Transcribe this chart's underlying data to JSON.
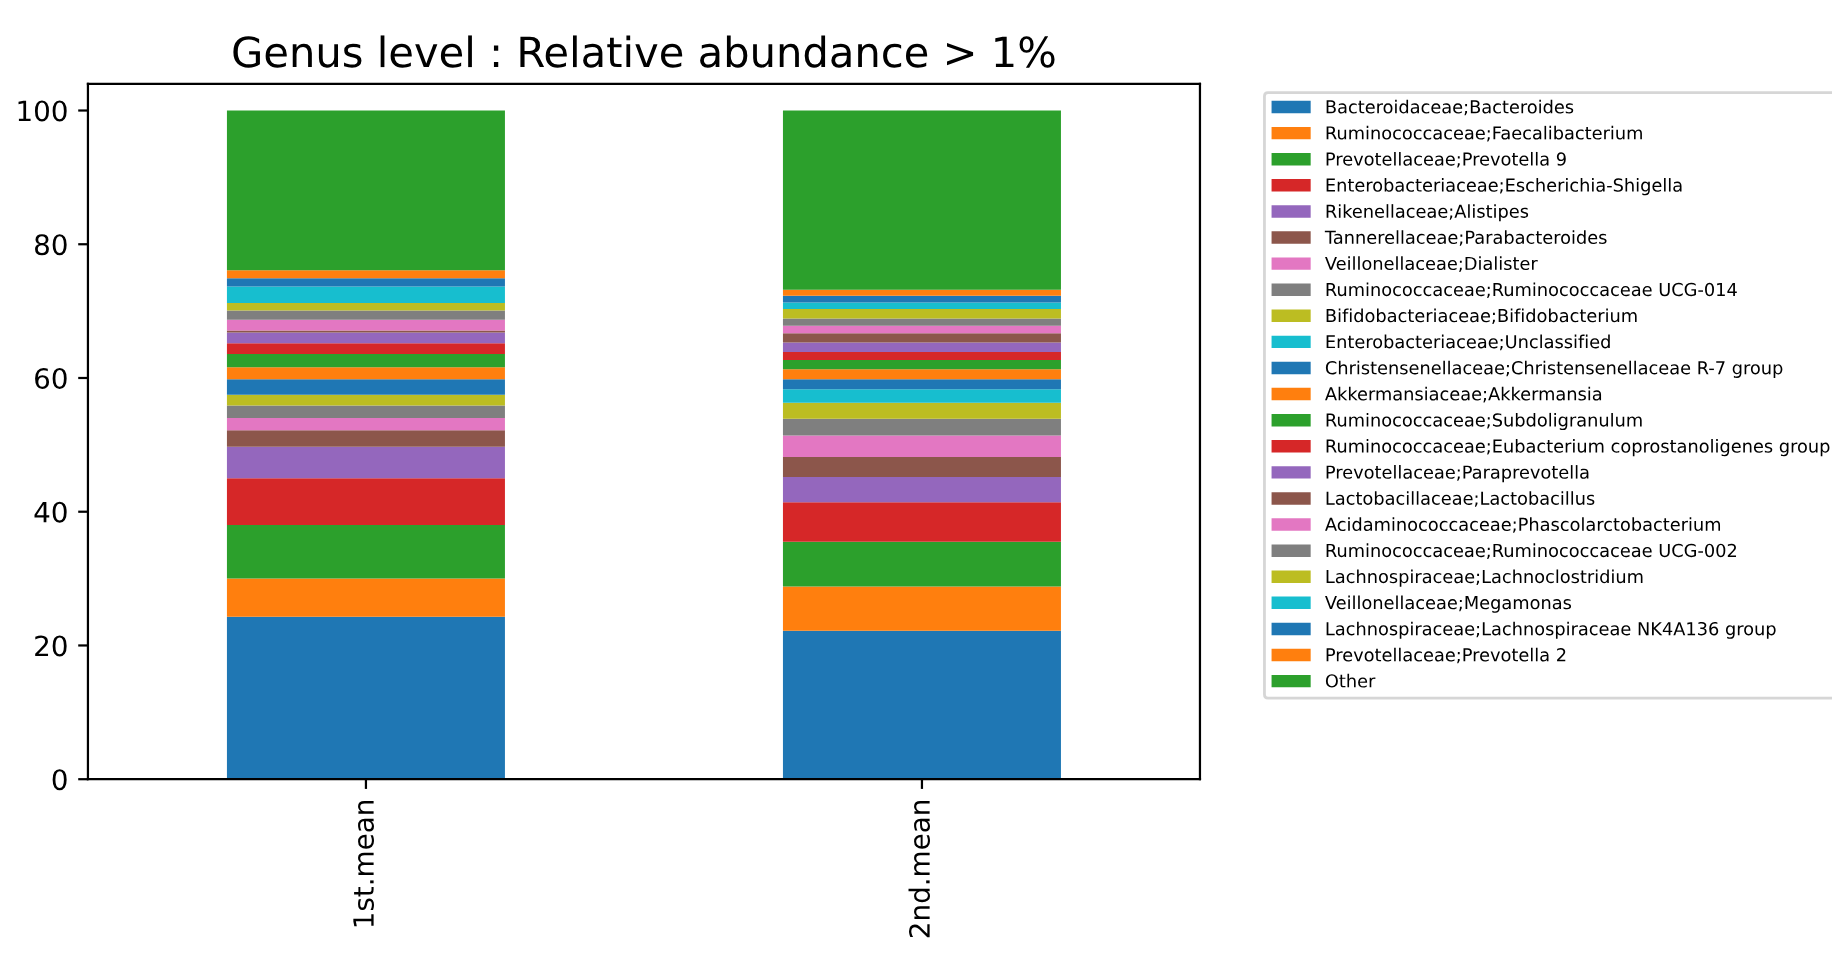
{
  "chart_data": {
    "type": "bar",
    "title": "Genus level : Relative abundance > 1%",
    "stacked": true,
    "legend": "right",
    "grid": false,
    "categories": [
      "1st.mean",
      "2nd.mean"
    ],
    "ylim": [
      0,
      104
    ],
    "yticks": [
      0,
      20,
      40,
      60,
      80,
      100
    ],
    "series": [
      {
        "name": "Bacteroidaceae;Bacteroides",
        "color": "#1f77b4",
        "values": [
          24.3,
          22.2
        ]
      },
      {
        "name": "Ruminococcaceae;Faecalibacterium",
        "color": "#ff7f0e",
        "values": [
          5.7,
          6.6
        ]
      },
      {
        "name": "Prevotellaceae;Prevotella 9",
        "color": "#2ca02c",
        "values": [
          8.0,
          6.7
        ]
      },
      {
        "name": "Enterobacteriaceae;Escherichia-Shigella",
        "color": "#d62728",
        "values": [
          7.0,
          5.9
        ]
      },
      {
        "name": "Rikenellaceae;Alistipes",
        "color": "#9467bd",
        "values": [
          4.7,
          3.8
        ]
      },
      {
        "name": "Tannerellaceae;Parabacteroides",
        "color": "#8c564b",
        "values": [
          2.5,
          3.0
        ]
      },
      {
        "name": "Veillonellaceae;Dialister",
        "color": "#e377c2",
        "values": [
          1.8,
          3.2
        ]
      },
      {
        "name": "Ruminococcaceae;Ruminococcaceae UCG-014",
        "color": "#7f7f7f",
        "values": [
          1.9,
          2.5
        ]
      },
      {
        "name": "Bifidobacteriaceae;Bifidobacterium",
        "color": "#bcbd22",
        "values": [
          1.6,
          2.4
        ]
      },
      {
        "name": "Enterobacteriaceae;Unclassified",
        "color": "#17becf",
        "values": [
          0,
          2.0
        ]
      },
      {
        "name": "Christensenellaceae;Christensenellaceae R-7 group",
        "color": "#1f77b4",
        "values": [
          2.3,
          1.5
        ]
      },
      {
        "name": "Akkermansiaceae;Akkermansia",
        "color": "#ff7f0e",
        "values": [
          1.8,
          1.5
        ]
      },
      {
        "name": "Ruminococcaceae;Subdoligranulum",
        "color": "#2ca02c",
        "values": [
          2.0,
          1.4
        ]
      },
      {
        "name": "Ruminococcaceae;Eubacterium coprostanoligenes group",
        "color": "#d62728",
        "values": [
          1.6,
          1.2
        ]
      },
      {
        "name": "Prevotellaceae;Paraprevotella",
        "color": "#9467bd",
        "values": [
          1.6,
          1.4
        ]
      },
      {
        "name": "Lactobacillaceae;Lactobacillus",
        "color": "#8c564b",
        "values": [
          0.3,
          1.4
        ]
      },
      {
        "name": "Acidaminococcaceae;Phascolarctobacterium",
        "color": "#e377c2",
        "values": [
          1.6,
          1.1
        ]
      },
      {
        "name": "Ruminococcaceae;Ruminococcaceae UCG-002",
        "color": "#7f7f7f",
        "values": [
          1.4,
          1.1
        ]
      },
      {
        "name": "Lachnospiraceae;Lachnoclostridium",
        "color": "#bcbd22",
        "values": [
          1.1,
          1.4
        ]
      },
      {
        "name": "Veillonellaceae;Megamonas",
        "color": "#17becf",
        "values": [
          2.5,
          1.0
        ]
      },
      {
        "name": "Lachnospiraceae;Lachnospiraceae NK4A136 group",
        "color": "#1f77b4",
        "values": [
          1.2,
          1.0
        ]
      },
      {
        "name": "Prevotellaceae;Prevotella 2",
        "color": "#ff7f0e",
        "values": [
          1.2,
          0.9
        ]
      },
      {
        "name": "Other",
        "color": "#2ca02c",
        "values": [
          23.9,
          26.8
        ]
      }
    ]
  }
}
